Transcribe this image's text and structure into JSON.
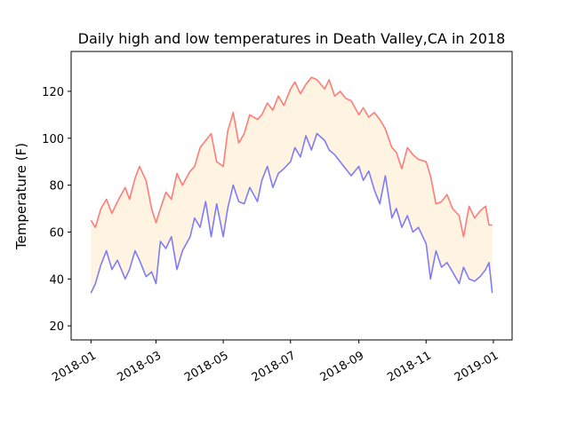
{
  "chart_data": {
    "type": "line",
    "title": "Daily high and low temperatures in Death Valley,CA in 2018",
    "xlabel": "",
    "ylabel": "Temperature (F)",
    "xlim": [
      "2017-12-14",
      "2019-01-18"
    ],
    "ylim": [
      14,
      137
    ],
    "grid": false,
    "legend": "none",
    "x_ticks": [
      "2018-01",
      "2018-03",
      "2018-05",
      "2018-07",
      "2018-09",
      "2018-11",
      "2019-01"
    ],
    "y_ticks": [
      20,
      40,
      60,
      80,
      100,
      120
    ],
    "fill_between": {
      "upper": "highs",
      "lower": "lows",
      "color": "#ffe8c4",
      "alpha": 0.5
    },
    "series": [
      {
        "key": "highs",
        "color": "#ff0000",
        "alpha": 0.5,
        "points": [
          [
            "2018-01-01",
            65
          ],
          [
            "2018-01-05",
            62
          ],
          [
            "2018-01-10",
            70
          ],
          [
            "2018-01-15",
            74
          ],
          [
            "2018-01-20",
            68
          ],
          [
            "2018-01-25",
            73
          ],
          [
            "2018-02-01",
            79
          ],
          [
            "2018-02-05",
            74
          ],
          [
            "2018-02-10",
            83
          ],
          [
            "2018-02-14",
            88
          ],
          [
            "2018-02-20",
            82
          ],
          [
            "2018-02-25",
            70
          ],
          [
            "2018-03-01",
            64
          ],
          [
            "2018-03-05",
            70
          ],
          [
            "2018-03-10",
            77
          ],
          [
            "2018-03-15",
            74
          ],
          [
            "2018-03-20",
            85
          ],
          [
            "2018-03-25",
            80
          ],
          [
            "2018-04-01",
            86
          ],
          [
            "2018-04-05",
            88
          ],
          [
            "2018-04-10",
            96
          ],
          [
            "2018-04-15",
            99
          ],
          [
            "2018-04-20",
            102
          ],
          [
            "2018-04-25",
            90
          ],
          [
            "2018-05-01",
            88
          ],
          [
            "2018-05-05",
            103
          ],
          [
            "2018-05-10",
            111
          ],
          [
            "2018-05-15",
            98
          ],
          [
            "2018-05-20",
            102
          ],
          [
            "2018-05-25",
            110
          ],
          [
            "2018-06-01",
            108
          ],
          [
            "2018-06-05",
            110
          ],
          [
            "2018-06-10",
            115
          ],
          [
            "2018-06-15",
            112
          ],
          [
            "2018-06-20",
            118
          ],
          [
            "2018-06-25",
            114
          ],
          [
            "2018-07-01",
            121
          ],
          [
            "2018-07-05",
            124
          ],
          [
            "2018-07-10",
            119
          ],
          [
            "2018-07-15",
            123
          ],
          [
            "2018-07-20",
            126
          ],
          [
            "2018-07-25",
            125
          ],
          [
            "2018-08-01",
            121
          ],
          [
            "2018-08-05",
            125
          ],
          [
            "2018-08-10",
            118
          ],
          [
            "2018-08-15",
            120
          ],
          [
            "2018-08-20",
            117
          ],
          [
            "2018-08-25",
            116
          ],
          [
            "2018-09-01",
            110
          ],
          [
            "2018-09-05",
            113
          ],
          [
            "2018-09-10",
            109
          ],
          [
            "2018-09-15",
            111
          ],
          [
            "2018-09-20",
            108
          ],
          [
            "2018-09-25",
            104
          ],
          [
            "2018-10-01",
            96
          ],
          [
            "2018-10-05",
            94
          ],
          [
            "2018-10-10",
            87
          ],
          [
            "2018-10-15",
            96
          ],
          [
            "2018-10-20",
            93
          ],
          [
            "2018-10-25",
            91
          ],
          [
            "2018-11-01",
            90
          ],
          [
            "2018-11-05",
            84
          ],
          [
            "2018-11-10",
            72
          ],
          [
            "2018-11-15",
            73
          ],
          [
            "2018-11-20",
            76
          ],
          [
            "2018-11-25",
            70
          ],
          [
            "2018-12-01",
            67
          ],
          [
            "2018-12-05",
            58
          ],
          [
            "2018-12-10",
            71
          ],
          [
            "2018-12-15",
            66
          ],
          [
            "2018-12-20",
            69
          ],
          [
            "2018-12-25",
            71
          ],
          [
            "2018-12-28",
            63
          ],
          [
            "2018-12-31",
            63
          ]
        ]
      },
      {
        "key": "lows",
        "color": "#0000ff",
        "alpha": 0.5,
        "points": [
          [
            "2018-01-01",
            34
          ],
          [
            "2018-01-05",
            38
          ],
          [
            "2018-01-10",
            46
          ],
          [
            "2018-01-15",
            52
          ],
          [
            "2018-01-20",
            44
          ],
          [
            "2018-01-25",
            48
          ],
          [
            "2018-02-01",
            40
          ],
          [
            "2018-02-05",
            44
          ],
          [
            "2018-02-10",
            52
          ],
          [
            "2018-02-14",
            48
          ],
          [
            "2018-02-20",
            41
          ],
          [
            "2018-02-25",
            43
          ],
          [
            "2018-03-01",
            38
          ],
          [
            "2018-03-05",
            56
          ],
          [
            "2018-03-10",
            53
          ],
          [
            "2018-03-15",
            58
          ],
          [
            "2018-03-20",
            44
          ],
          [
            "2018-03-25",
            52
          ],
          [
            "2018-04-01",
            58
          ],
          [
            "2018-04-05",
            66
          ],
          [
            "2018-04-10",
            62
          ],
          [
            "2018-04-15",
            73
          ],
          [
            "2018-04-20",
            58
          ],
          [
            "2018-04-25",
            72
          ],
          [
            "2018-05-01",
            58
          ],
          [
            "2018-05-05",
            70
          ],
          [
            "2018-05-10",
            80
          ],
          [
            "2018-05-15",
            73
          ],
          [
            "2018-05-20",
            72
          ],
          [
            "2018-05-25",
            79
          ],
          [
            "2018-06-01",
            73
          ],
          [
            "2018-06-05",
            82
          ],
          [
            "2018-06-10",
            88
          ],
          [
            "2018-06-15",
            79
          ],
          [
            "2018-06-20",
            85
          ],
          [
            "2018-06-25",
            87
          ],
          [
            "2018-07-01",
            90
          ],
          [
            "2018-07-05",
            96
          ],
          [
            "2018-07-10",
            92
          ],
          [
            "2018-07-15",
            101
          ],
          [
            "2018-07-20",
            95
          ],
          [
            "2018-07-25",
            102
          ],
          [
            "2018-08-01",
            99
          ],
          [
            "2018-08-05",
            95
          ],
          [
            "2018-08-10",
            93
          ],
          [
            "2018-08-15",
            90
          ],
          [
            "2018-08-20",
            87
          ],
          [
            "2018-08-25",
            84
          ],
          [
            "2018-09-01",
            88
          ],
          [
            "2018-09-05",
            82
          ],
          [
            "2018-09-10",
            86
          ],
          [
            "2018-09-15",
            78
          ],
          [
            "2018-09-20",
            72
          ],
          [
            "2018-09-25",
            84
          ],
          [
            "2018-10-01",
            66
          ],
          [
            "2018-10-05",
            70
          ],
          [
            "2018-10-10",
            62
          ],
          [
            "2018-10-15",
            67
          ],
          [
            "2018-10-20",
            60
          ],
          [
            "2018-10-25",
            62
          ],
          [
            "2018-11-01",
            55
          ],
          [
            "2018-11-05",
            40
          ],
          [
            "2018-11-10",
            52
          ],
          [
            "2018-11-15",
            45
          ],
          [
            "2018-11-20",
            47
          ],
          [
            "2018-11-25",
            43
          ],
          [
            "2018-12-01",
            38
          ],
          [
            "2018-12-05",
            45
          ],
          [
            "2018-12-10",
            40
          ],
          [
            "2018-12-15",
            39
          ],
          [
            "2018-12-20",
            41
          ],
          [
            "2018-12-25",
            44
          ],
          [
            "2018-12-28",
            47
          ],
          [
            "2018-12-31",
            34
          ]
        ]
      }
    ]
  }
}
